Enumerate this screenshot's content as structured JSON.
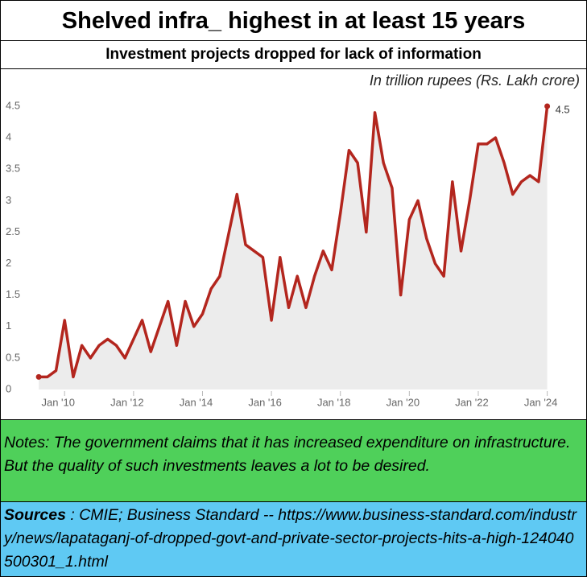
{
  "title": "Shelved infra_ highest in at least 15 years",
  "chart_data": {
    "type": "line",
    "title": "Investment projects dropped for lack of information",
    "subtitle": "In trillion rupees (Rs. Lakh crore)",
    "x": [
      2009.25,
      2009.5,
      2009.75,
      2010,
      2010.25,
      2010.5,
      2010.75,
      2011,
      2011.25,
      2011.5,
      2011.75,
      2012,
      2012.25,
      2012.5,
      2012.75,
      2013,
      2013.25,
      2013.5,
      2013.75,
      2014,
      2014.25,
      2014.5,
      2014.75,
      2015,
      2015.25,
      2015.5,
      2015.75,
      2016,
      2016.25,
      2016.5,
      2016.75,
      2017,
      2017.25,
      2017.5,
      2017.75,
      2018,
      2018.25,
      2018.5,
      2018.75,
      2019,
      2019.25,
      2019.5,
      2019.75,
      2020,
      2020.25,
      2020.5,
      2020.75,
      2021,
      2021.25,
      2021.5,
      2021.75,
      2022,
      2022.25,
      2022.5,
      2022.75,
      2023,
      2023.25,
      2023.5,
      2023.75,
      2024
    ],
    "series": [
      {
        "color": "#b3261e",
        "values": [
          0.2,
          0.2,
          0.3,
          1.1,
          0.2,
          0.7,
          0.5,
          0.7,
          0.8,
          0.7,
          0.5,
          0.8,
          1.1,
          0.6,
          1.0,
          1.4,
          0.7,
          1.4,
          1.0,
          1.2,
          1.6,
          1.8,
          2.45,
          3.1,
          2.3,
          2.2,
          2.1,
          1.1,
          2.1,
          1.3,
          1.8,
          1.3,
          1.8,
          2.2,
          1.9,
          2.8,
          3.8,
          3.6,
          2.5,
          4.4,
          3.6,
          3.2,
          1.5,
          2.7,
          3.0,
          2.4,
          2.0,
          1.8,
          3.3,
          2.2,
          3.0,
          3.9,
          3.9,
          4.0,
          3.6,
          3.1,
          3.3,
          3.4,
          3.3,
          4.5
        ]
      }
    ],
    "xlim": [
      2008.85,
      2024.5
    ],
    "xticks": [
      {
        "value": 2010,
        "label": "Jan '10"
      },
      {
        "value": 2012,
        "label": "Jan '12"
      },
      {
        "value": 2014,
        "label": "Jan '14"
      },
      {
        "value": 2016,
        "label": "Jan '16"
      },
      {
        "value": 2018,
        "label": "Jan '18"
      },
      {
        "value": 2020,
        "label": "Jan '20"
      },
      {
        "value": 2022,
        "label": "Jan '22"
      },
      {
        "value": 2024,
        "label": "Jan '24"
      }
    ],
    "ylim": [
      0,
      4.5
    ],
    "yticks": [
      0,
      0.5,
      1,
      1.5,
      2,
      2.5,
      3,
      3.5,
      4,
      4.5
    ],
    "area_color": "#ececec"
  },
  "notes": "Notes:  The government claims that it has increased expenditure on infrastructure.  But the quality of such investments leaves a lot to be desired.",
  "sources": {
    "label": "Sources",
    "text": " : CMIE; Business Standard -- https://www.business-standard.com/industry/news/lapataganj-of-dropped-govt-and-private-sector-projects-hits-a-high-124040500301_1.html"
  }
}
